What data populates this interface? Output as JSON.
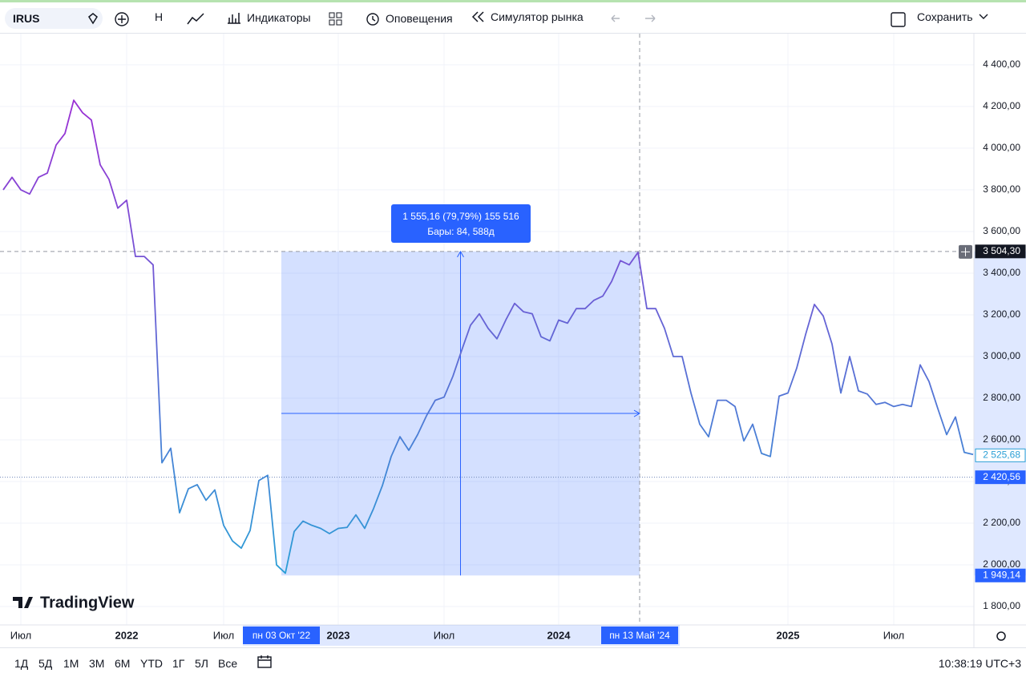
{
  "toolbar": {
    "symbol": "IRUS",
    "interval": "Н",
    "indicators": "Индикаторы",
    "alerts": "Оповещения",
    "replay": "Симулятор рынка",
    "save": "Сохранить"
  },
  "chart_data": {
    "type": "line",
    "categories": [
      null,
      null,
      "Июл",
      null,
      null,
      null,
      null,
      null,
      null,
      null,
      null,
      null,
      null,
      null,
      "2022",
      null,
      null,
      null,
      null,
      null,
      null,
      null,
      null,
      null,
      null,
      "Июл",
      null,
      null,
      null,
      null,
      null,
      null,
      null,
      null,
      null,
      null,
      null,
      null,
      "2023",
      null,
      null,
      null,
      null,
      null,
      null,
      null,
      null,
      null,
      null,
      null,
      "Июл",
      null,
      null,
      null,
      null,
      null,
      null,
      null,
      null,
      null,
      null,
      null,
      null,
      "2024",
      null,
      null,
      null,
      null,
      null,
      null,
      null,
      null,
      null,
      null,
      null,
      null,
      null,
      null,
      null,
      null,
      null,
      null,
      null,
      null,
      null,
      null,
      null,
      null,
      null,
      "2025",
      null,
      null,
      null,
      null,
      null,
      null,
      null,
      null,
      null,
      null,
      null,
      "Июл",
      null,
      null,
      null,
      null,
      null,
      null,
      null,
      null,
      null
    ],
    "series": [
      {
        "name": "IRUS",
        "gradient": [
          "#9b2fd4",
          "#2a9fd6"
        ],
        "values": [
          3800,
          3860,
          3800,
          3780,
          3860,
          3880,
          4015,
          4070,
          4230,
          4170,
          4135,
          3920,
          3850,
          3712,
          3750,
          3480,
          3480,
          3440,
          2490,
          2560,
          2250,
          2365,
          2385,
          2310,
          2360,
          2190,
          2115,
          2080,
          2165,
          2405,
          2430,
          2000,
          1960,
          2160,
          2210,
          2190,
          2175,
          2150,
          2175,
          2180,
          2240,
          2175,
          2270,
          2380,
          2520,
          2615,
          2550,
          2625,
          2715,
          2790,
          2805,
          2905,
          3030,
          3150,
          3205,
          3135,
          3085,
          3175,
          3255,
          3215,
          3205,
          3095,
          3075,
          3175,
          3160,
          3230,
          3230,
          3270,
          3290,
          3360,
          3460,
          3440,
          3500,
          3230,
          3230,
          3135,
          3000,
          3000,
          2825,
          2675,
          2615,
          2790,
          2790,
          2760,
          2595,
          2675,
          2535,
          2520,
          2810,
          2825,
          2945,
          3105,
          3250,
          3195,
          3060,
          2825,
          3000,
          2835,
          2820,
          2770,
          2780,
          2760,
          2770,
          2760,
          2960,
          2880,
          2750,
          2625,
          2710,
          2540,
          2530
        ]
      }
    ],
    "ylim": [
      1731,
      4538
    ],
    "yticks": [
      {
        "value": 1800,
        "label": "1 800,00"
      },
      {
        "value": 2000,
        "label": "2 000,00"
      },
      {
        "value": 2200,
        "label": "2 200,00"
      },
      {
        "value": 2400,
        "label": "2 400,00"
      },
      {
        "value": 2600,
        "label": "2 600,00"
      },
      {
        "value": 2800,
        "label": "2 800,00"
      },
      {
        "value": 3000,
        "label": "3 000,00"
      },
      {
        "value": 3200,
        "label": "3 200,00"
      },
      {
        "value": 3400,
        "label": "3 400,00"
      },
      {
        "value": 3600,
        "label": "3 600,00"
      },
      {
        "value": 3800,
        "label": "3 800,00"
      },
      {
        "value": 4000,
        "label": "4 000,00"
      },
      {
        "value": 4200,
        "label": "4 200,00"
      },
      {
        "value": 4400,
        "label": "4 400,00"
      }
    ],
    "price_labels": [
      {
        "value": 3504.3,
        "label": "3 504,30"
      },
      {
        "value": 2525.68,
        "label": "2 525,68"
      },
      {
        "value": 2420.56,
        "label": "2 420,56"
      },
      {
        "value": 1949.14,
        "label": "1 949,14"
      }
    ],
    "range": {
      "start_label": "пн 03 Окт '22",
      "end_label": "пн 13 Май '24",
      "change": "1 555,16 (79,79%) 155 516",
      "bars": "Бары: 84, 588д"
    },
    "logo": "TradingView"
  },
  "bottom_bar": {
    "ranges": [
      "1Д",
      "5Д",
      "1М",
      "3М",
      "6М",
      "YTD",
      "1Г",
      "5Л",
      "Все"
    ],
    "clock": "10:38:19 UTC+3"
  }
}
